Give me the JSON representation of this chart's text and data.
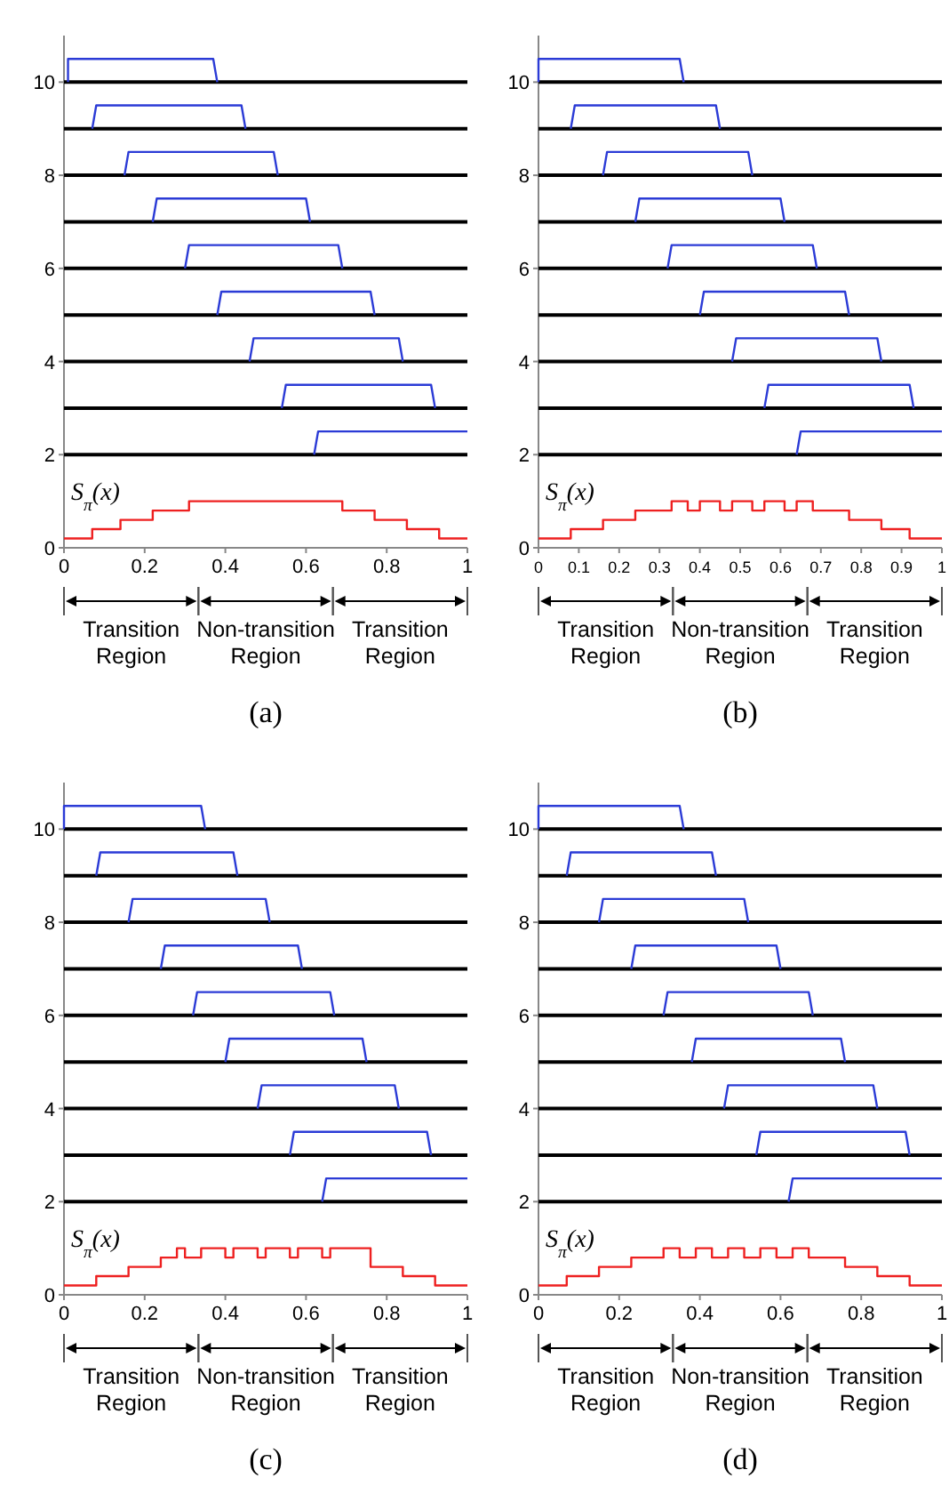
{
  "chart_data": [
    {
      "type": "line",
      "title": "(a)",
      "xlim": [
        0,
        1
      ],
      "ylim": [
        0,
        11
      ],
      "xticks": [
        0,
        0.2,
        0.4,
        0.6,
        0.8,
        1
      ],
      "yticks": [
        0,
        2,
        4,
        6,
        8,
        10
      ],
      "grid": false,
      "legend": false,
      "annotations": [
        "Transition Region",
        "Non-transition Region",
        "Transition Region"
      ],
      "series": [
        {
          "color": "#000000",
          "x": [
            0,
            1
          ],
          "values": [
            10,
            10
          ]
        },
        {
          "color": "#000000",
          "x": [
            0,
            1
          ],
          "values": [
            9,
            9
          ]
        },
        {
          "color": "#000000",
          "x": [
            0,
            1
          ],
          "values": [
            8,
            8
          ]
        },
        {
          "color": "#000000",
          "x": [
            0,
            1
          ],
          "values": [
            7,
            7
          ]
        },
        {
          "color": "#000000",
          "x": [
            0,
            1
          ],
          "values": [
            6,
            6
          ]
        },
        {
          "color": "#000000",
          "x": [
            0,
            1
          ],
          "values": [
            5,
            5
          ]
        },
        {
          "color": "#000000",
          "x": [
            0,
            1
          ],
          "values": [
            4,
            4
          ]
        },
        {
          "color": "#000000",
          "x": [
            0,
            1
          ],
          "values": [
            3,
            3
          ]
        },
        {
          "color": "#000000",
          "x": [
            0,
            1
          ],
          "values": [
            2,
            2
          ]
        },
        {
          "color": "#2b3bd6",
          "x": [
            0.01,
            0.01,
            0.37,
            0.38
          ],
          "values": [
            10,
            10.5,
            10.5,
            10
          ]
        },
        {
          "color": "#2b3bd6",
          "x": [
            0.07,
            0.08,
            0.44,
            0.45
          ],
          "values": [
            9,
            9.5,
            9.5,
            9
          ]
        },
        {
          "color": "#2b3bd6",
          "x": [
            0.15,
            0.16,
            0.52,
            0.53
          ],
          "values": [
            8,
            8.5,
            8.5,
            8
          ]
        },
        {
          "color": "#2b3bd6",
          "x": [
            0.22,
            0.23,
            0.6,
            0.61
          ],
          "values": [
            7,
            7.5,
            7.5,
            7
          ]
        },
        {
          "color": "#2b3bd6",
          "x": [
            0.3,
            0.31,
            0.68,
            0.69
          ],
          "values": [
            6,
            6.5,
            6.5,
            6
          ]
        },
        {
          "color": "#2b3bd6",
          "x": [
            0.38,
            0.39,
            0.76,
            0.77
          ],
          "values": [
            5,
            5.5,
            5.5,
            5
          ]
        },
        {
          "color": "#2b3bd6",
          "x": [
            0.46,
            0.47,
            0.83,
            0.84
          ],
          "values": [
            4,
            4.5,
            4.5,
            4
          ]
        },
        {
          "color": "#2b3bd6",
          "x": [
            0.54,
            0.55,
            0.91,
            0.92
          ],
          "values": [
            3,
            3.5,
            3.5,
            3
          ]
        },
        {
          "color": "#2b3bd6",
          "x": [
            0.62,
            0.63,
            1
          ],
          "values": [
            2,
            2.5,
            2.5
          ]
        },
        {
          "type": "step",
          "name": "S$_{π}$(x)",
          "color": "#ee2020",
          "x": [
            0,
            0.07,
            0.14,
            0.22,
            0.31,
            0.69,
            0.77,
            0.85,
            0.93,
            1
          ],
          "values": [
            0.2,
            0.4,
            0.6,
            0.8,
            1,
            0.8,
            0.6,
            0.4,
            0.2,
            0.2
          ]
        }
      ]
    },
    {
      "type": "line",
      "title": "(b)",
      "xlim": [
        0,
        1
      ],
      "ylim": [
        0,
        11
      ],
      "xticks": [
        0,
        0.1,
        0.2,
        0.3,
        0.4,
        0.5,
        0.6,
        0.7,
        0.8,
        0.9,
        1
      ],
      "yticks": [
        0,
        2,
        4,
        6,
        8,
        10
      ],
      "grid": false,
      "legend": false,
      "annotations": [
        "Transition Region",
        "Non-transition Region",
        "Transition Region"
      ],
      "series": [
        {
          "color": "#000000",
          "x": [
            0,
            1
          ],
          "values": [
            10,
            10
          ]
        },
        {
          "color": "#000000",
          "x": [
            0,
            1
          ],
          "values": [
            9,
            9
          ]
        },
        {
          "color": "#000000",
          "x": [
            0,
            1
          ],
          "values": [
            8,
            8
          ]
        },
        {
          "color": "#000000",
          "x": [
            0,
            1
          ],
          "values": [
            7,
            7
          ]
        },
        {
          "color": "#000000",
          "x": [
            0,
            1
          ],
          "values": [
            6,
            6
          ]
        },
        {
          "color": "#000000",
          "x": [
            0,
            1
          ],
          "values": [
            5,
            5
          ]
        },
        {
          "color": "#000000",
          "x": [
            0,
            1
          ],
          "values": [
            4,
            4
          ]
        },
        {
          "color": "#000000",
          "x": [
            0,
            1
          ],
          "values": [
            3,
            3
          ]
        },
        {
          "color": "#000000",
          "x": [
            0,
            1
          ],
          "values": [
            2,
            2
          ]
        },
        {
          "color": "#2b3bd6",
          "x": [
            0,
            0,
            0.35,
            0.36
          ],
          "values": [
            10,
            10.5,
            10.5,
            10
          ]
        },
        {
          "color": "#2b3bd6",
          "x": [
            0.08,
            0.09,
            0.44,
            0.45
          ],
          "values": [
            9,
            9.5,
            9.5,
            9
          ]
        },
        {
          "color": "#2b3bd6",
          "x": [
            0.16,
            0.17,
            0.52,
            0.53
          ],
          "values": [
            8,
            8.5,
            8.5,
            8
          ]
        },
        {
          "color": "#2b3bd6",
          "x": [
            0.24,
            0.25,
            0.6,
            0.61
          ],
          "values": [
            7,
            7.5,
            7.5,
            7
          ]
        },
        {
          "color": "#2b3bd6",
          "x": [
            0.32,
            0.33,
            0.68,
            0.69
          ],
          "values": [
            6,
            6.5,
            6.5,
            6
          ]
        },
        {
          "color": "#2b3bd6",
          "x": [
            0.4,
            0.41,
            0.76,
            0.77
          ],
          "values": [
            5,
            5.5,
            5.5,
            5
          ]
        },
        {
          "color": "#2b3bd6",
          "x": [
            0.48,
            0.49,
            0.84,
            0.85
          ],
          "values": [
            4,
            4.5,
            4.5,
            4
          ]
        },
        {
          "color": "#2b3bd6",
          "x": [
            0.56,
            0.57,
            0.92,
            0.93
          ],
          "values": [
            3,
            3.5,
            3.5,
            3
          ]
        },
        {
          "color": "#2b3bd6",
          "x": [
            0.64,
            0.65,
            1
          ],
          "values": [
            2,
            2.5,
            2.5
          ]
        },
        {
          "type": "step",
          "name": "S$_{π}$(x)",
          "color": "#ee2020",
          "x": [
            0,
            0.08,
            0.16,
            0.24,
            0.33,
            0.37,
            0.4,
            0.45,
            0.48,
            0.53,
            0.56,
            0.61,
            0.64,
            0.68,
            0.77,
            0.85,
            0.92,
            1
          ],
          "values": [
            0.2,
            0.4,
            0.6,
            0.8,
            1,
            0.8,
            1,
            0.8,
            1,
            0.8,
            1,
            0.8,
            1,
            0.8,
            0.6,
            0.4,
            0.2,
            0.2
          ]
        }
      ]
    },
    {
      "type": "line",
      "title": "(c)",
      "xlim": [
        0,
        1
      ],
      "ylim": [
        0,
        11
      ],
      "xticks": [
        0,
        0.2,
        0.4,
        0.6,
        0.8,
        1
      ],
      "yticks": [
        0,
        2,
        4,
        6,
        8,
        10
      ],
      "grid": false,
      "legend": false,
      "annotations": [
        "Transition Region",
        "Non-transition Region",
        "Transition Region"
      ],
      "series": [
        {
          "color": "#000000",
          "x": [
            0,
            1
          ],
          "values": [
            10,
            10
          ]
        },
        {
          "color": "#000000",
          "x": [
            0,
            1
          ],
          "values": [
            9,
            9
          ]
        },
        {
          "color": "#000000",
          "x": [
            0,
            1
          ],
          "values": [
            8,
            8
          ]
        },
        {
          "color": "#000000",
          "x": [
            0,
            1
          ],
          "values": [
            7,
            7
          ]
        },
        {
          "color": "#000000",
          "x": [
            0,
            1
          ],
          "values": [
            6,
            6
          ]
        },
        {
          "color": "#000000",
          "x": [
            0,
            1
          ],
          "values": [
            5,
            5
          ]
        },
        {
          "color": "#000000",
          "x": [
            0,
            1
          ],
          "values": [
            4,
            4
          ]
        },
        {
          "color": "#000000",
          "x": [
            0,
            1
          ],
          "values": [
            3,
            3
          ]
        },
        {
          "color": "#000000",
          "x": [
            0,
            1
          ],
          "values": [
            2,
            2
          ]
        },
        {
          "color": "#2b3bd6",
          "x": [
            0,
            0,
            0.34,
            0.35
          ],
          "values": [
            10,
            10.5,
            10.5,
            10
          ]
        },
        {
          "color": "#2b3bd6",
          "x": [
            0.08,
            0.09,
            0.42,
            0.43
          ],
          "values": [
            9,
            9.5,
            9.5,
            9
          ]
        },
        {
          "color": "#2b3bd6",
          "x": [
            0.16,
            0.17,
            0.5,
            0.51
          ],
          "values": [
            8,
            8.5,
            8.5,
            8
          ]
        },
        {
          "color": "#2b3bd6",
          "x": [
            0.24,
            0.25,
            0.58,
            0.59
          ],
          "values": [
            7,
            7.5,
            7.5,
            7
          ]
        },
        {
          "color": "#2b3bd6",
          "x": [
            0.32,
            0.33,
            0.66,
            0.67
          ],
          "values": [
            6,
            6.5,
            6.5,
            6
          ]
        },
        {
          "color": "#2b3bd6",
          "x": [
            0.4,
            0.41,
            0.74,
            0.75
          ],
          "values": [
            5,
            5.5,
            5.5,
            5
          ]
        },
        {
          "color": "#2b3bd6",
          "x": [
            0.48,
            0.49,
            0.82,
            0.83
          ],
          "values": [
            4,
            4.5,
            4.5,
            4
          ]
        },
        {
          "color": "#2b3bd6",
          "x": [
            0.56,
            0.57,
            0.9,
            0.91
          ],
          "values": [
            3,
            3.5,
            3.5,
            3
          ]
        },
        {
          "color": "#2b3bd6",
          "x": [
            0.64,
            0.65,
            1
          ],
          "values": [
            2,
            2.5,
            2.5
          ]
        },
        {
          "type": "step",
          "name": "S$_{π}$(x)",
          "color": "#ee2020",
          "x": [
            0,
            0.08,
            0.16,
            0.24,
            0.28,
            0.3,
            0.34,
            0.4,
            0.42,
            0.48,
            0.5,
            0.56,
            0.58,
            0.64,
            0.66,
            0.76,
            0.84,
            0.92,
            1
          ],
          "values": [
            0.2,
            0.4,
            0.6,
            0.8,
            1,
            0.8,
            1,
            0.8,
            1,
            0.8,
            1,
            0.8,
            1,
            0.8,
            1,
            0.6,
            0.4,
            0.2,
            0.2
          ]
        }
      ]
    },
    {
      "type": "line",
      "title": "(d)",
      "xlim": [
        0,
        1
      ],
      "ylim": [
        0,
        11
      ],
      "xticks": [
        0,
        0.2,
        0.4,
        0.6,
        0.8,
        1
      ],
      "yticks": [
        0,
        2,
        4,
        6,
        8,
        10
      ],
      "grid": false,
      "legend": false,
      "annotations": [
        "Transition Region",
        "Non-transition Region",
        "Transition Region"
      ],
      "series": [
        {
          "color": "#000000",
          "x": [
            0,
            1
          ],
          "values": [
            10,
            10
          ]
        },
        {
          "color": "#000000",
          "x": [
            0,
            1
          ],
          "values": [
            9,
            9
          ]
        },
        {
          "color": "#000000",
          "x": [
            0,
            1
          ],
          "values": [
            8,
            8
          ]
        },
        {
          "color": "#000000",
          "x": [
            0,
            1
          ],
          "values": [
            7,
            7
          ]
        },
        {
          "color": "#000000",
          "x": [
            0,
            1
          ],
          "values": [
            6,
            6
          ]
        },
        {
          "color": "#000000",
          "x": [
            0,
            1
          ],
          "values": [
            5,
            5
          ]
        },
        {
          "color": "#000000",
          "x": [
            0,
            1
          ],
          "values": [
            4,
            4
          ]
        },
        {
          "color": "#000000",
          "x": [
            0,
            1
          ],
          "values": [
            3,
            3
          ]
        },
        {
          "color": "#000000",
          "x": [
            0,
            1
          ],
          "values": [
            2,
            2
          ]
        },
        {
          "color": "#2b3bd6",
          "x": [
            0,
            0,
            0.35,
            0.36
          ],
          "values": [
            10,
            10.5,
            10.5,
            10
          ]
        },
        {
          "color": "#2b3bd6",
          "x": [
            0.07,
            0.08,
            0.43,
            0.44
          ],
          "values": [
            9,
            9.5,
            9.5,
            9
          ]
        },
        {
          "color": "#2b3bd6",
          "x": [
            0.15,
            0.16,
            0.51,
            0.52
          ],
          "values": [
            8,
            8.5,
            8.5,
            8
          ]
        },
        {
          "color": "#2b3bd6",
          "x": [
            0.23,
            0.24,
            0.59,
            0.6
          ],
          "values": [
            7,
            7.5,
            7.5,
            7
          ]
        },
        {
          "color": "#2b3bd6",
          "x": [
            0.31,
            0.32,
            0.67,
            0.68
          ],
          "values": [
            6,
            6.5,
            6.5,
            6
          ]
        },
        {
          "color": "#2b3bd6",
          "x": [
            0.38,
            0.39,
            0.75,
            0.76
          ],
          "values": [
            5,
            5.5,
            5.5,
            5
          ]
        },
        {
          "color": "#2b3bd6",
          "x": [
            0.46,
            0.47,
            0.83,
            0.84
          ],
          "values": [
            4,
            4.5,
            4.5,
            4
          ]
        },
        {
          "color": "#2b3bd6",
          "x": [
            0.54,
            0.55,
            0.91,
            0.92
          ],
          "values": [
            3,
            3.5,
            3.5,
            3
          ]
        },
        {
          "color": "#2b3bd6",
          "x": [
            0.62,
            0.63,
            1
          ],
          "values": [
            2,
            2.5,
            2.5
          ]
        },
        {
          "type": "step",
          "name": "S$_{π}$(x)",
          "color": "#ee2020",
          "x": [
            0,
            0.07,
            0.15,
            0.23,
            0.31,
            0.35,
            0.39,
            0.43,
            0.47,
            0.51,
            0.55,
            0.59,
            0.63,
            0.67,
            0.76,
            0.84,
            0.92,
            1
          ],
          "values": [
            0.2,
            0.4,
            0.6,
            0.8,
            1,
            0.8,
            1,
            0.8,
            1,
            0.8,
            1,
            0.8,
            1,
            0.8,
            0.6,
            0.4,
            0.2,
            0.2
          ]
        }
      ]
    }
  ]
}
